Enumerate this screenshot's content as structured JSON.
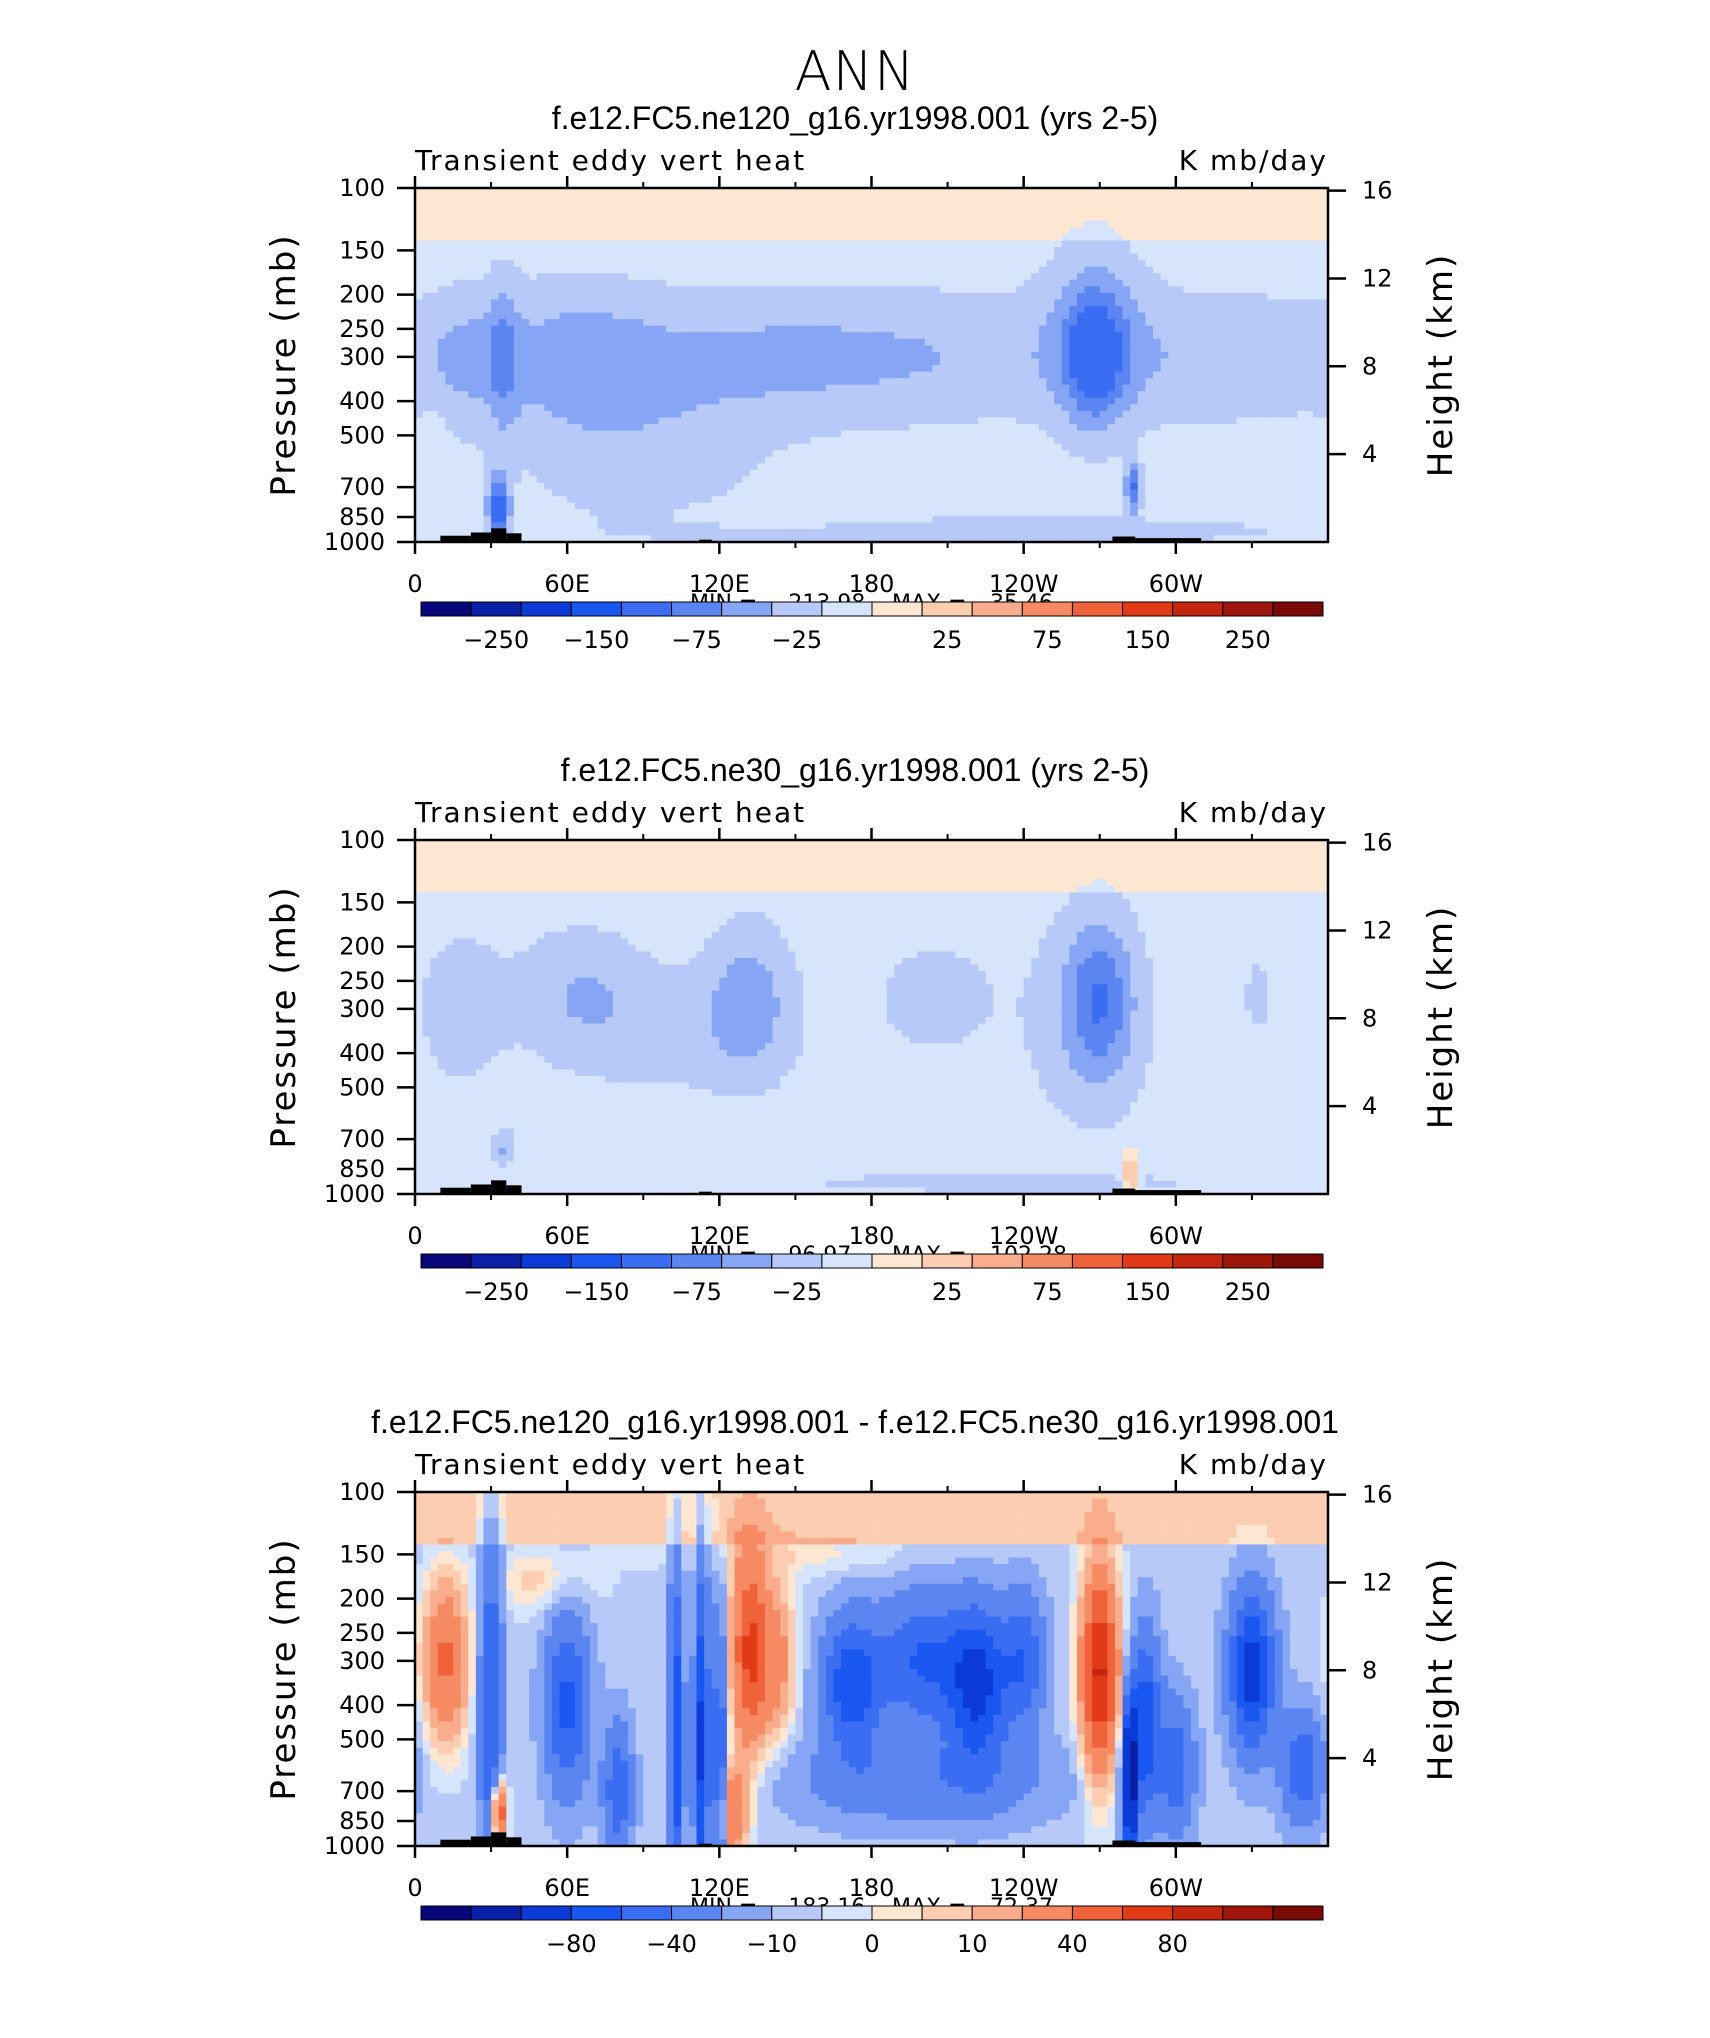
{
  "page": {
    "title": "ANN"
  },
  "colorbar_colors": [
    "#08087a",
    "#0a1fa8",
    "#0c3ad6",
    "#1a57f0",
    "#3a6df2",
    "#5b86f2",
    "#86a6f5",
    "#b6c9f8",
    "#d6e5fc",
    "#fde6d2",
    "#fccdb1",
    "#f9ad8d",
    "#f68a63",
    "#f0623a",
    "#e23a17",
    "#c4250f",
    "#9e160b",
    "#7a0a08"
  ],
  "chart_data": [
    {
      "type": "heatmap",
      "title": "f.e12.FC5.ne120_g16.yr1998.001 (yrs 2-5)",
      "variable_label": "Transient eddy vert heat",
      "units_label": "K mb/day",
      "ylabel": "Pressure (mb)",
      "y2label": "Height (km)",
      "x_ticks": [
        "0",
        "60E",
        "120E",
        "180",
        "120W",
        "60W"
      ],
      "y_ticks": [
        "100",
        "150",
        "200",
        "250",
        "300",
        "400",
        "500",
        "700",
        "850",
        "1000"
      ],
      "y2_ticks": [
        "16",
        "12",
        "8",
        "4"
      ],
      "min_label": "MIN =",
      "min_value": "−213.98",
      "max_label": "MAX =",
      "max_value": "35.46",
      "colorbar_labels": [
        "−250",
        "−150",
        "−75",
        "−25",
        "25",
        "75",
        "150",
        "250"
      ],
      "contour_levels": [
        -300,
        -250,
        -200,
        -150,
        -100,
        -75,
        -50,
        -25,
        -10,
        10,
        25,
        50,
        75,
        100,
        150,
        200,
        250,
        300
      ],
      "blobs": [
        {
          "lon": 35,
          "p": 300,
          "w": 4,
          "h": 0.35,
          "v": -40
        },
        {
          "lon": 33,
          "p": 800,
          "w": 3,
          "h": 0.15,
          "v": -110
        },
        {
          "lon": 20,
          "p": 300,
          "w": 12,
          "h": 0.3,
          "v": -28
        },
        {
          "lon": 62,
          "p": 300,
          "w": 22,
          "h": 0.35,
          "v": -32
        },
        {
          "lon": 120,
          "p": 300,
          "w": 60,
          "h": 0.3,
          "v": -28
        },
        {
          "lon": 90,
          "p": 550,
          "w": 35,
          "h": 0.4,
          "v": -24
        },
        {
          "lon": 197,
          "p": 300,
          "w": 60,
          "h": 0.3,
          "v": -28
        },
        {
          "lon": 268,
          "p": 300,
          "w": 8,
          "h": 0.3,
          "v": -75
        },
        {
          "lon": 268,
          "p": 250,
          "w": 14,
          "h": 0.45,
          "v": -35
        },
        {
          "lon": 283,
          "p": 700,
          "w": 2,
          "h": 0.12,
          "v": -90
        },
        {
          "lon": 318,
          "p": 300,
          "w": 40,
          "h": 0.3,
          "v": -30
        },
        {
          "lon": 230,
          "p": 930,
          "w": 75,
          "h": 0.06,
          "v": -35
        },
        {
          "lon": 150,
          "p": 860,
          "w": 28,
          "h": 0.06,
          "v": 12
        },
        {
          "lon": 8,
          "p": 550,
          "w": 3,
          "h": 0.3,
          "v": 12
        }
      ]
    },
    {
      "type": "heatmap",
      "title": "f.e12.FC5.ne30_g16.yr1998.001 (yrs 2-5)",
      "variable_label": "Transient eddy vert heat",
      "units_label": "K mb/day",
      "ylabel": "Pressure (mb)",
      "y2label": "Height (km)",
      "x_ticks": [
        "0",
        "60E",
        "120E",
        "180",
        "120W",
        "60W"
      ],
      "y_ticks": [
        "100",
        "150",
        "200",
        "250",
        "300",
        "400",
        "500",
        "700",
        "850",
        "1000"
      ],
      "y2_ticks": [
        "16",
        "12",
        "8",
        "4"
      ],
      "min_label": "MIN =",
      "min_value": "−96.97",
      "max_label": "MAX =",
      "max_value": "102.28",
      "colorbar_labels": [
        "−250",
        "−150",
        "−75",
        "−25",
        "25",
        "75",
        "150",
        "250"
      ],
      "contour_levels": [
        -300,
        -250,
        -200,
        -150,
        -100,
        -75,
        -50,
        -25,
        -10,
        10,
        25,
        50,
        75,
        100,
        150,
        200,
        250,
        300
      ],
      "blobs": [
        {
          "lon": 18,
          "p": 300,
          "w": 12,
          "h": 0.35,
          "v": -28
        },
        {
          "lon": 65,
          "p": 270,
          "w": 18,
          "h": 0.3,
          "v": -35
        },
        {
          "lon": 132,
          "p": 280,
          "w": 12,
          "h": 0.35,
          "v": -45
        },
        {
          "lon": 105,
          "p": 350,
          "w": 30,
          "h": 0.3,
          "v": -22
        },
        {
          "lon": 205,
          "p": 280,
          "w": 16,
          "h": 0.25,
          "v": -28
        },
        {
          "lon": 270,
          "p": 280,
          "w": 9,
          "h": 0.35,
          "v": -65
        },
        {
          "lon": 265,
          "p": 320,
          "w": 18,
          "h": 0.5,
          "v": -30
        },
        {
          "lon": 35,
          "p": 750,
          "w": 3,
          "h": 0.1,
          "v": -40
        },
        {
          "lon": 332,
          "p": 280,
          "w": 4,
          "h": 0.2,
          "v": -22
        },
        {
          "lon": 170,
          "p": 700,
          "w": 40,
          "h": 0.1,
          "v": 12
        },
        {
          "lon": 55,
          "p": 840,
          "w": 15,
          "h": 0.06,
          "v": 12
        },
        {
          "lon": 329,
          "p": 500,
          "w": 4,
          "h": 0.2,
          "v": 12
        },
        {
          "lon": 282,
          "p": 880,
          "w": 2,
          "h": 0.1,
          "v": 90
        },
        {
          "lon": 230,
          "p": 930,
          "w": 60,
          "h": 0.05,
          "v": -25
        }
      ]
    },
    {
      "type": "heatmap",
      "title": "f.e12.FC5.ne120_g16.yr1998.001 - f.e12.FC5.ne30_g16.yr1998.001",
      "variable_label": "Transient eddy vert heat",
      "units_label": "K mb/day",
      "ylabel": "Pressure (mb)",
      "y2label": "Height (km)",
      "x_ticks": [
        "0",
        "60E",
        "120E",
        "180",
        "120W",
        "60W"
      ],
      "y_ticks": [
        "100",
        "150",
        "200",
        "250",
        "300",
        "400",
        "500",
        "700",
        "850",
        "1000"
      ],
      "y2_ticks": [
        "16",
        "12",
        "8",
        "4"
      ],
      "min_label": "MIN =",
      "min_value": "−183.16",
      "max_label": "MAX =",
      "max_value": "72.37",
      "colorbar_labels": [
        "−80",
        "−40",
        "−10",
        "0",
        "10",
        "40",
        "80"
      ],
      "contour_levels": [
        -100,
        -80,
        -60,
        -40,
        -30,
        -20,
        -10,
        -5,
        -2,
        0,
        2,
        5,
        10,
        20,
        30,
        40,
        60,
        80,
        100
      ],
      "blobs": [
        {
          "lon": 12,
          "p": 300,
          "w": 6,
          "h": 0.35,
          "v": 25
        },
        {
          "lon": 30,
          "p": 400,
          "w": 3,
          "h": 0.8,
          "v": -30
        },
        {
          "lon": 33,
          "p": 800,
          "w": 2,
          "h": 0.15,
          "v": 40
        },
        {
          "lon": 60,
          "p": 400,
          "w": 6,
          "h": 0.4,
          "v": -30
        },
        {
          "lon": 80,
          "p": 700,
          "w": 4,
          "h": 0.3,
          "v": -25
        },
        {
          "lon": 103,
          "p": 500,
          "w": 2,
          "h": 0.8,
          "v": -35
        },
        {
          "lon": 113,
          "p": 500,
          "w": 2,
          "h": 0.8,
          "v": -40
        },
        {
          "lon": 120,
          "p": 600,
          "w": 2,
          "h": 0.7,
          "v": -30
        },
        {
          "lon": 132,
          "p": 280,
          "w": 5,
          "h": 0.45,
          "v": 35
        },
        {
          "lon": 125,
          "p": 800,
          "w": 4,
          "h": 0.2,
          "v": 25
        },
        {
          "lon": 143,
          "p": 300,
          "w": 5,
          "h": 0.35,
          "v": 15
        },
        {
          "lon": 172,
          "p": 350,
          "w": 8,
          "h": 0.3,
          "v": -35
        },
        {
          "lon": 200,
          "p": 300,
          "w": 12,
          "h": 0.3,
          "v": -28
        },
        {
          "lon": 222,
          "p": 350,
          "w": 8,
          "h": 0.35,
          "v": -40
        },
        {
          "lon": 240,
          "p": 300,
          "w": 6,
          "h": 0.3,
          "v": -25
        },
        {
          "lon": 200,
          "p": 650,
          "w": 35,
          "h": 0.2,
          "v": -15
        },
        {
          "lon": 270,
          "p": 320,
          "w": 5,
          "h": 0.45,
          "v": 45
        },
        {
          "lon": 282,
          "p": 650,
          "w": 2,
          "h": 0.35,
          "v": -70
        },
        {
          "lon": 288,
          "p": 450,
          "w": 4,
          "h": 0.4,
          "v": -35
        },
        {
          "lon": 300,
          "p": 600,
          "w": 5,
          "h": 0.3,
          "v": -25
        },
        {
          "lon": 330,
          "p": 320,
          "w": 6,
          "h": 0.35,
          "v": -45
        },
        {
          "lon": 350,
          "p": 600,
          "w": 6,
          "h": 0.25,
          "v": -25
        },
        {
          "lon": 50,
          "p": 180,
          "w": 15,
          "h": 0.15,
          "v": 6
        },
        {
          "lon": 150,
          "p": 150,
          "w": 40,
          "h": 0.1,
          "v": 4
        }
      ]
    }
  ]
}
